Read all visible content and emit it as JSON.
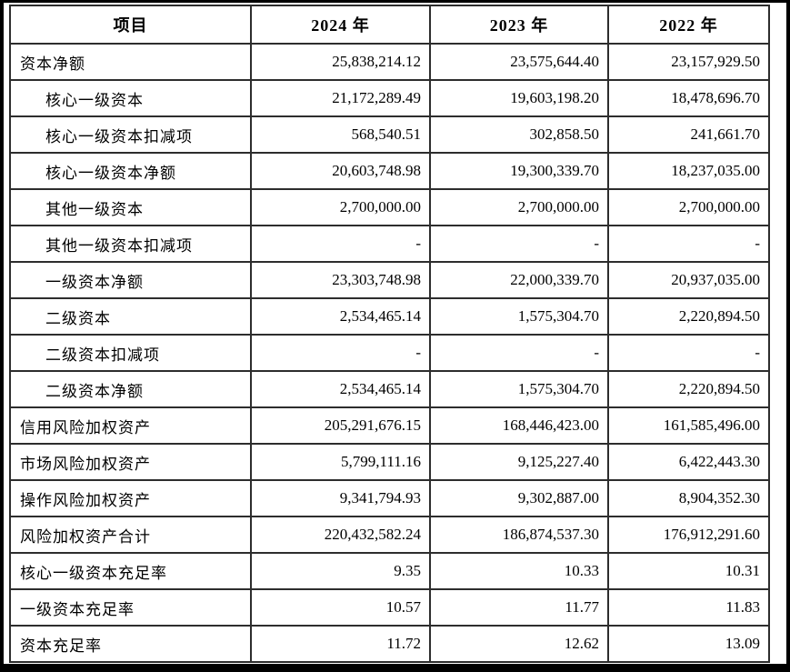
{
  "table": {
    "columns": [
      "项目",
      "2024 年",
      "2023 年",
      "2022 年"
    ],
    "rows": [
      {
        "label": "资本净额",
        "indent": false,
        "values": [
          "25,838,214.12",
          "23,575,644.40",
          "23,157,929.50"
        ]
      },
      {
        "label": "核心一级资本",
        "indent": true,
        "values": [
          "21,172,289.49",
          "19,603,198.20",
          "18,478,696.70"
        ]
      },
      {
        "label": "核心一级资本扣减项",
        "indent": true,
        "values": [
          "568,540.51",
          "302,858.50",
          "241,661.70"
        ]
      },
      {
        "label": "核心一级资本净额",
        "indent": true,
        "values": [
          "20,603,748.98",
          "19,300,339.70",
          "18,237,035.00"
        ]
      },
      {
        "label": "其他一级资本",
        "indent": true,
        "values": [
          "2,700,000.00",
          "2,700,000.00",
          "2,700,000.00"
        ]
      },
      {
        "label": "其他一级资本扣减项",
        "indent": true,
        "values": [
          "-",
          "-",
          "-"
        ]
      },
      {
        "label": "一级资本净额",
        "indent": true,
        "values": [
          "23,303,748.98",
          "22,000,339.70",
          "20,937,035.00"
        ]
      },
      {
        "label": "二级资本",
        "indent": true,
        "values": [
          "2,534,465.14",
          "1,575,304.70",
          "2,220,894.50"
        ]
      },
      {
        "label": "二级资本扣减项",
        "indent": true,
        "values": [
          "-",
          "-",
          "-"
        ]
      },
      {
        "label": "二级资本净额",
        "indent": true,
        "values": [
          "2,534,465.14",
          "1,575,304.70",
          "2,220,894.50"
        ]
      },
      {
        "label": "信用风险加权资产",
        "indent": false,
        "values": [
          "205,291,676.15",
          "168,446,423.00",
          "161,585,496.00"
        ]
      },
      {
        "label": "市场风险加权资产",
        "indent": false,
        "values": [
          "5,799,111.16",
          "9,125,227.40",
          "6,422,443.30"
        ]
      },
      {
        "label": "操作风险加权资产",
        "indent": false,
        "values": [
          "9,341,794.93",
          "9,302,887.00",
          "8,904,352.30"
        ]
      },
      {
        "label": "风险加权资产合计",
        "indent": false,
        "values": [
          "220,432,582.24",
          "186,874,537.30",
          "176,912,291.60"
        ]
      },
      {
        "label": "核心一级资本充足率",
        "indent": false,
        "values": [
          "9.35",
          "10.33",
          "10.31"
        ]
      },
      {
        "label": "一级资本充足率",
        "indent": false,
        "values": [
          "10.57",
          "11.77",
          "11.83"
        ]
      },
      {
        "label": "资本充足率",
        "indent": false,
        "values": [
          "11.72",
          "12.62",
          "13.09"
        ]
      }
    ]
  },
  "colors": {
    "background": "#ffffff",
    "text": "#000000",
    "table_border": "#2d2d2d",
    "page_frame": "#000000"
  }
}
